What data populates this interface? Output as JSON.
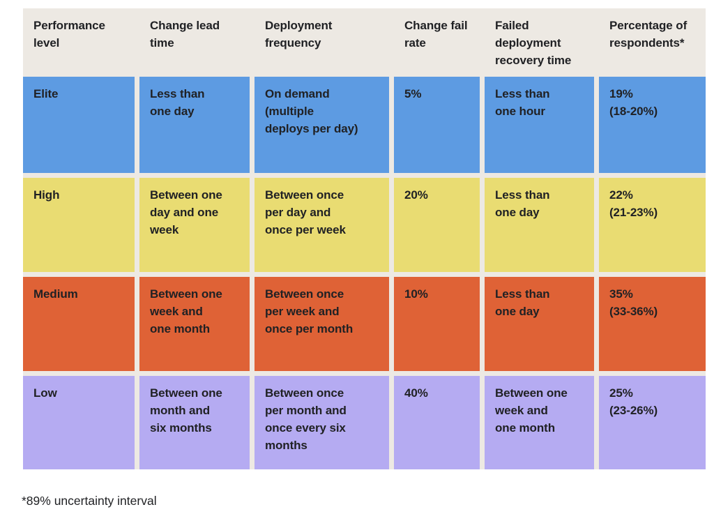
{
  "colors": {
    "page_background": "#FFFFFF",
    "table_background": "#EDE9E3",
    "text": "#202124",
    "row_elite": "#5D9BE2",
    "row_high": "#E9DC72",
    "row_medium": "#DF6236",
    "row_low": "#B5ABF2"
  },
  "table": {
    "columns": [
      "Performance\nlevel",
      "Change lead\ntime",
      "Deployment\nfrequency",
      "Change fail\nrate",
      "Failed\ndeployment\nrecovery time",
      "Percentage of\nrespondents*"
    ],
    "rows": [
      {
        "level": "Elite",
        "color": "#5D9BE2",
        "change_lead_time": "Less than\none day",
        "deployment_frequency": "On demand\n(multiple\ndeploys per day)",
        "change_fail_rate": "5%",
        "failed_deployment_recovery_time": "Less than\none hour",
        "percentage_of_respondents": "19%\n(18-20%)"
      },
      {
        "level": "High",
        "color": "#E9DC72",
        "change_lead_time": "Between one\nday and one\nweek",
        "deployment_frequency": "Between once\nper day and\nonce per week",
        "change_fail_rate": "20%",
        "failed_deployment_recovery_time": "Less than\none day",
        "percentage_of_respondents": "22%\n(21-23%)"
      },
      {
        "level": "Medium",
        "color": "#DF6236",
        "change_lead_time": "Between one\nweek and\none month",
        "deployment_frequency": "Between once\nper week and\nonce per month",
        "change_fail_rate": "10%",
        "failed_deployment_recovery_time": "Less than\none day",
        "percentage_of_respondents": "35%\n(33-36%)"
      },
      {
        "level": "Low",
        "color": "#B5ABF2",
        "change_lead_time": "Between one\nmonth and\nsix months",
        "deployment_frequency": "Between once\nper month and\nonce every six\nmonths",
        "change_fail_rate": "40%",
        "failed_deployment_recovery_time": "Between one\nweek and\none month",
        "percentage_of_respondents": "25%\n(23-26%)"
      }
    ]
  },
  "footnote": "*89% uncertainty interval",
  "chart_data": {
    "type": "table",
    "title": "",
    "columns": [
      "Performance level",
      "Change lead time",
      "Deployment frequency",
      "Change fail rate",
      "Failed deployment recovery time",
      "Percentage of respondents*"
    ],
    "rows": [
      [
        "Elite",
        "Less than one day",
        "On demand (multiple deploys per day)",
        "5%",
        "Less than one hour",
        "19% (18-20%)"
      ],
      [
        "High",
        "Between one day and one week",
        "Between once per day and once per week",
        "20%",
        "Less than one day",
        "22% (21-23%)"
      ],
      [
        "Medium",
        "Between one week and one month",
        "Between once per week and once per month",
        "10%",
        "Less than one day",
        "35% (33-36%)"
      ],
      [
        "Low",
        "Between one month and six months",
        "Between once per month and once every six months",
        "40%",
        "Between one week and one month",
        "25% (23-26%)"
      ]
    ],
    "change_fail_rate_pct": [
      5,
      20,
      10,
      40
    ],
    "percentage_of_respondents_pct": [
      19,
      22,
      35,
      25
    ],
    "respondents_uncertainty_ranges_pct": [
      [
        18,
        20
      ],
      [
        21,
        23
      ],
      [
        33,
        36
      ],
      [
        23,
        26
      ]
    ],
    "row_colors": [
      "#5D9BE2",
      "#E9DC72",
      "#DF6236",
      "#B5ABF2"
    ],
    "footnote": "*89% uncertainty interval"
  }
}
